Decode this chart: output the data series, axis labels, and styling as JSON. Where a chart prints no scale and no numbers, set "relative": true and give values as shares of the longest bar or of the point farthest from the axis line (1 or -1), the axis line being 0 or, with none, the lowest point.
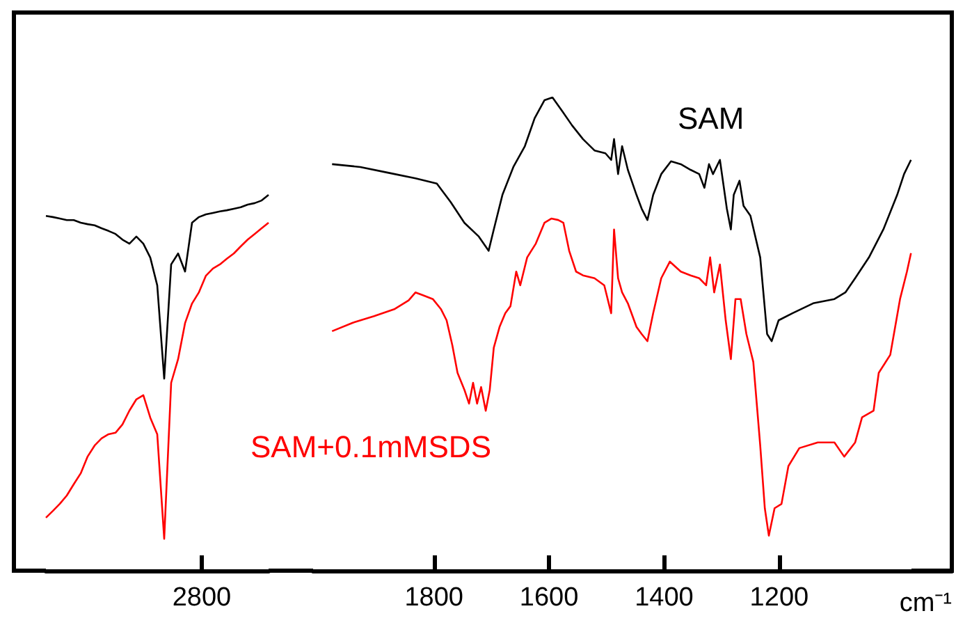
{
  "chart_data": [
    {
      "type": "line",
      "relative": true,
      "marker": "none",
      "annotations": [
        "2800"
      ],
      "categories": [
        null,
        null,
        null,
        null,
        null,
        null,
        null,
        null,
        null,
        null,
        null,
        null,
        null,
        null,
        null,
        null,
        null,
        null,
        null,
        null,
        null,
        null,
        null,
        null,
        null,
        null,
        null,
        null,
        null,
        null,
        null,
        null,
        null
      ],
      "series": [
        {
          "color": "#000000",
          "values": [
            0.944,
            0.941,
            0.937,
            0.933,
            0.933,
            0.926,
            0.922,
            0.919,
            0.911,
            0.904,
            0.896,
            0.881,
            0.87,
            0.889,
            0.87,
            0.833,
            0.759,
            0.511,
            0.815,
            0.844,
            0.796,
            0.926,
            0.941,
            0.948,
            0.952,
            0.956,
            0.959,
            0.963,
            0.967,
            0.974,
            0.978,
            0.985,
            1
          ]
        },
        {
          "color": "#ff0000",
          "values": [
            0.141,
            0.159,
            0.178,
            0.2,
            0.23,
            0.259,
            0.304,
            0.333,
            0.352,
            0.363,
            0.367,
            0.389,
            0.426,
            0.456,
            0.467,
            0.407,
            0.363,
            0.085,
            0.5,
            0.563,
            0.659,
            0.711,
            0.741,
            0.785,
            0.804,
            0.815,
            0.83,
            0.844,
            0.863,
            0.881,
            0.896,
            0.911,
            0.926
          ]
        }
      ]
    },
    {
      "type": "line",
      "relative": true,
      "marker": "none",
      "xlim": [
        2010,
        900
      ],
      "xticks": [
        1800,
        1600,
        1400,
        1200
      ],
      "xlabel": "cm⁻¹",
      "series": [
        {
          "name": "SAM",
          "color": "#000000",
          "x": [
            1977,
            1928,
            1880,
            1832,
            1795,
            1771,
            1747,
            1722,
            1705,
            1696,
            1681,
            1662,
            1642,
            1625,
            1608,
            1594,
            1577,
            1560,
            1541,
            1521,
            1502,
            1492,
            1487,
            1480,
            1473,
            1463,
            1448,
            1439,
            1429,
            1419,
            1405,
            1388,
            1371,
            1354,
            1339,
            1330,
            1322,
            1315,
            1303,
            1291,
            1284,
            1279,
            1269,
            1262,
            1250,
            1233,
            1221,
            1213,
            1201,
            1177,
            1141,
            1104,
            1085,
            1068,
            1044,
            1019,
            995,
            983,
            971
          ],
          "values": [
            0.859,
            0.853,
            0.841,
            0.829,
            0.818,
            0.779,
            0.735,
            0.706,
            0.676,
            0.721,
            0.794,
            0.853,
            0.897,
            0.956,
            0.994,
            1,
            0.971,
            0.941,
            0.912,
            0.888,
            0.882,
            0.868,
            0.912,
            0.838,
            0.897,
            0.847,
            0.794,
            0.765,
            0.741,
            0.794,
            0.838,
            0.865,
            0.859,
            0.847,
            0.838,
            0.809,
            0.859,
            0.838,
            0.868,
            0.765,
            0.721,
            0.794,
            0.824,
            0.771,
            0.75,
            0.662,
            0.5,
            0.485,
            0.529,
            0.544,
            0.565,
            0.574,
            0.588,
            0.618,
            0.662,
            0.721,
            0.794,
            0.838,
            0.868
          ]
        },
        {
          "name": "SAM+0.1mMSDS",
          "color": "#ff0000",
          "x": [
            1977,
            1941,
            1904,
            1868,
            1844,
            1832,
            1819,
            1802,
            1788,
            1778,
            1768,
            1759,
            1747,
            1739,
            1732,
            1725,
            1718,
            1710,
            1703,
            1696,
            1686,
            1676,
            1667,
            1657,
            1650,
            1638,
            1623,
            1608,
            1596,
            1584,
            1575,
            1565,
            1553,
            1541,
            1521,
            1504,
            1492,
            1487,
            1480,
            1473,
            1463,
            1448,
            1439,
            1429,
            1419,
            1405,
            1390,
            1371,
            1354,
            1339,
            1327,
            1320,
            1313,
            1303,
            1293,
            1284,
            1276,
            1267,
            1257,
            1245,
            1233,
            1225,
            1218,
            1208,
            1196,
            1184,
            1165,
            1133,
            1104,
            1087,
            1068,
            1056,
            1036,
            1027,
            1007,
            990,
            978,
            971
          ],
          "values": [
            0.506,
            0.524,
            0.538,
            0.553,
            0.571,
            0.588,
            0.582,
            0.574,
            0.553,
            0.529,
            0.476,
            0.418,
            0.382,
            0.353,
            0.397,
            0.353,
            0.388,
            0.338,
            0.382,
            0.471,
            0.515,
            0.544,
            0.559,
            0.632,
            0.603,
            0.662,
            0.691,
            0.735,
            0.744,
            0.741,
            0.735,
            0.676,
            0.632,
            0.624,
            0.618,
            0.603,
            0.544,
            0.721,
            0.618,
            0.588,
            0.565,
            0.515,
            0.5,
            0.485,
            0.544,
            0.618,
            0.653,
            0.632,
            0.624,
            0.618,
            0.603,
            0.662,
            0.588,
            0.647,
            0.529,
            0.447,
            0.574,
            0.574,
            0.5,
            0.441,
            0.265,
            0.132,
            0.074,
            0.132,
            0.141,
            0.221,
            0.259,
            0.271,
            0.271,
            0.241,
            0.271,
            0.324,
            0.338,
            0.418,
            0.456,
            0.574,
            0.632,
            0.671
          ]
        }
      ]
    }
  ]
}
